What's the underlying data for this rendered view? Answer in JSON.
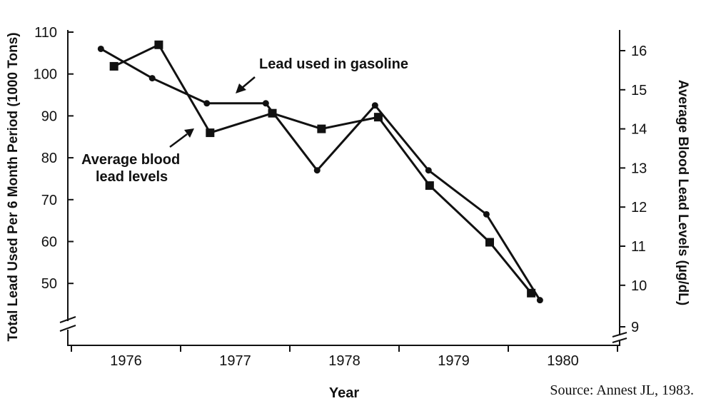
{
  "chart_data": {
    "type": "line",
    "xlabel": "Year",
    "ylabel": "Total Lead Used Per 6 Month Period (1000 Tons)",
    "y2label": "Average Blood Lead Levels (µg/dL)",
    "source": "Source: Annest JL, 1983.",
    "x_ticks": [
      "1976",
      "1977",
      "1978",
      "1979",
      "1980"
    ],
    "xlim": [
      1976,
      1981
    ],
    "ylim": [
      40,
      110
    ],
    "y_ticks": [
      110,
      100,
      90,
      80,
      70,
      60,
      50
    ],
    "y2lim": [
      9,
      16.5
    ],
    "y2_ticks": [
      16,
      15,
      14,
      13,
      12,
      11,
      10,
      9
    ],
    "axis_breaks": true,
    "grid": false,
    "series": [
      {
        "name": "Lead used in gasoline",
        "axis": "left",
        "marker": "circle",
        "x": [
          1976.27,
          1976.74,
          1977.24,
          1977.78,
          1978.25,
          1978.78,
          1979.27,
          1979.8,
          1980.29
        ],
        "values": [
          106,
          99,
          93,
          93,
          77,
          92.5,
          77,
          66.5,
          46
        ]
      },
      {
        "name": "Average blood lead levels",
        "axis": "right",
        "marker": "square",
        "x": [
          1976.39,
          1976.8,
          1977.27,
          1977.84,
          1978.29,
          1978.81,
          1979.28,
          1979.83,
          1980.21
        ],
        "values": [
          15.6,
          16.15,
          13.9,
          14.4,
          14.0,
          14.3,
          12.55,
          11.1,
          9.8
        ]
      }
    ],
    "annotations": {
      "gasoline": "Lead used in gasoline",
      "blood_line1": "Average blood",
      "blood_line2": "lead levels"
    }
  }
}
